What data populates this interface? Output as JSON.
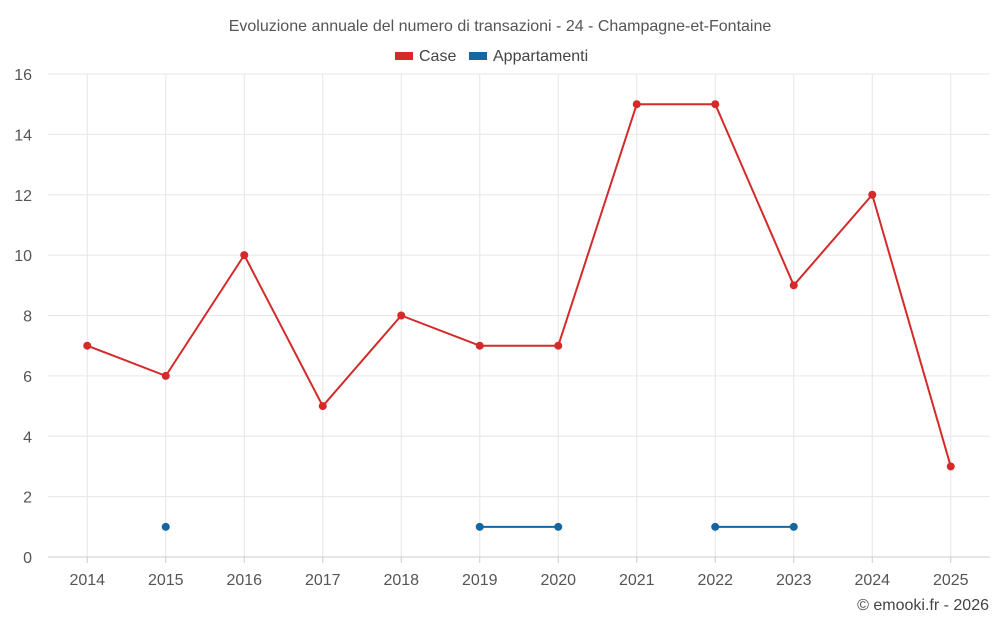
{
  "chart_data": {
    "type": "line",
    "title": "Evoluzione annuale del numero di transazioni - 24 - Champagne-et-Fontaine",
    "categories": [
      "2014",
      "2015",
      "2016",
      "2017",
      "2018",
      "2019",
      "2020",
      "2021",
      "2022",
      "2023",
      "2024",
      "2025"
    ],
    "series": [
      {
        "name": "Case",
        "color": "#d42a2a",
        "values": [
          7,
          6,
          10,
          5,
          8,
          7,
          7,
          15,
          15,
          9,
          12,
          3
        ]
      },
      {
        "name": "Appartamenti",
        "color": "#1565a0",
        "values": [
          null,
          1,
          null,
          null,
          null,
          1,
          1,
          null,
          1,
          1,
          null,
          null
        ]
      }
    ],
    "ylim": [
      0,
      16
    ],
    "yticks": [
      0,
      2,
      4,
      6,
      8,
      10,
      12,
      14,
      16
    ],
    "legend": "top-center",
    "grid": true,
    "xlabel": "",
    "ylabel": ""
  },
  "credit": "© emooki.fr - 2026"
}
